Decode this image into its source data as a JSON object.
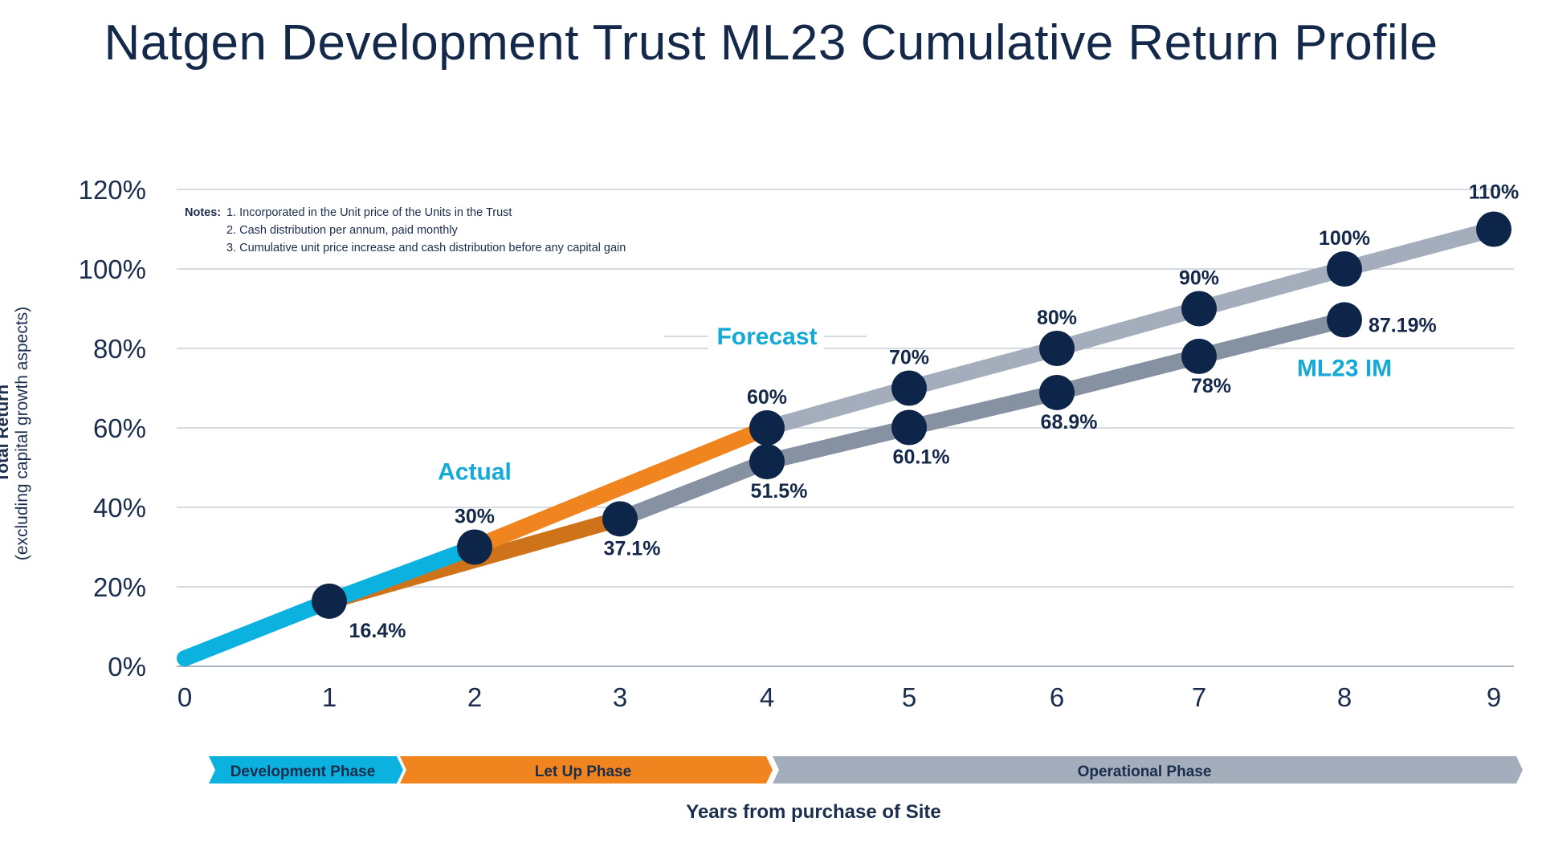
{
  "title": "Natgen Development Trust ML23 Cumulative Return Profile",
  "notes": {
    "heading": "Notes:",
    "items": [
      "1. Incorporated in the Unit price of the Units in the Trust",
      "2. Cash distribution per annum, paid monthly",
      "3. Cumulative unit price increase and cash distribution before any capital gain"
    ]
  },
  "colors": {
    "actual": "#0bb1df",
    "letup": "#f0841e",
    "letup_im": "#cf731a",
    "forecast": "#a3adbb",
    "im": "#8691a2",
    "marker": "#0d2548",
    "label_accent": "#14a9d6",
    "phase_dev": "#0bb1df",
    "phase_letup": "#f0841e",
    "phase_oper": "#a3adbb"
  },
  "chart_data": {
    "type": "line",
    "title": "Natgen Development Trust ML23 Cumulative Return Profile",
    "xlabel": "Years from purchase of Site",
    "ylabel": "Total Return",
    "ylabel_sub": "(excluding capital growth aspects)",
    "xlim": [
      0,
      9
    ],
    "ylim": [
      0,
      120
    ],
    "x_ticks": [
      "0",
      "1",
      "2",
      "3",
      "4",
      "5",
      "6",
      "7",
      "8",
      "9"
    ],
    "y_ticks": [
      "0%",
      "20%",
      "40%",
      "60%",
      "80%",
      "100%",
      "120%"
    ],
    "y_tick_values": [
      0,
      20,
      40,
      60,
      80,
      100,
      120
    ],
    "grid": true,
    "series": [
      {
        "key": "forecast",
        "x": [
          0,
          1,
          2,
          4,
          5,
          6,
          7,
          8,
          9
        ],
        "y": [
          2,
          16.4,
          30,
          60,
          70,
          80,
          90,
          100,
          110
        ],
        "point_labels": [
          "",
          "",
          "30%",
          "60%",
          "70%",
          "80%",
          "90%",
          "100%",
          "110%"
        ]
      },
      {
        "key": "im",
        "name": "ML23 IM",
        "x": [
          0,
          1,
          3,
          4,
          5,
          6,
          7,
          8
        ],
        "y": [
          2,
          16.4,
          37.1,
          51.5,
          60.1,
          68.9,
          78,
          87.19
        ],
        "point_labels": [
          "",
          "16.4%",
          "37.1%",
          "51.5%",
          "60.1%",
          "68.9%",
          "78%",
          "87.19%"
        ]
      }
    ],
    "annotations": [
      "Actual",
      "Forecast",
      "ML23 IM"
    ],
    "phases": [
      "Development Phase",
      "Let Up Phase",
      "Operational Phase"
    ]
  }
}
